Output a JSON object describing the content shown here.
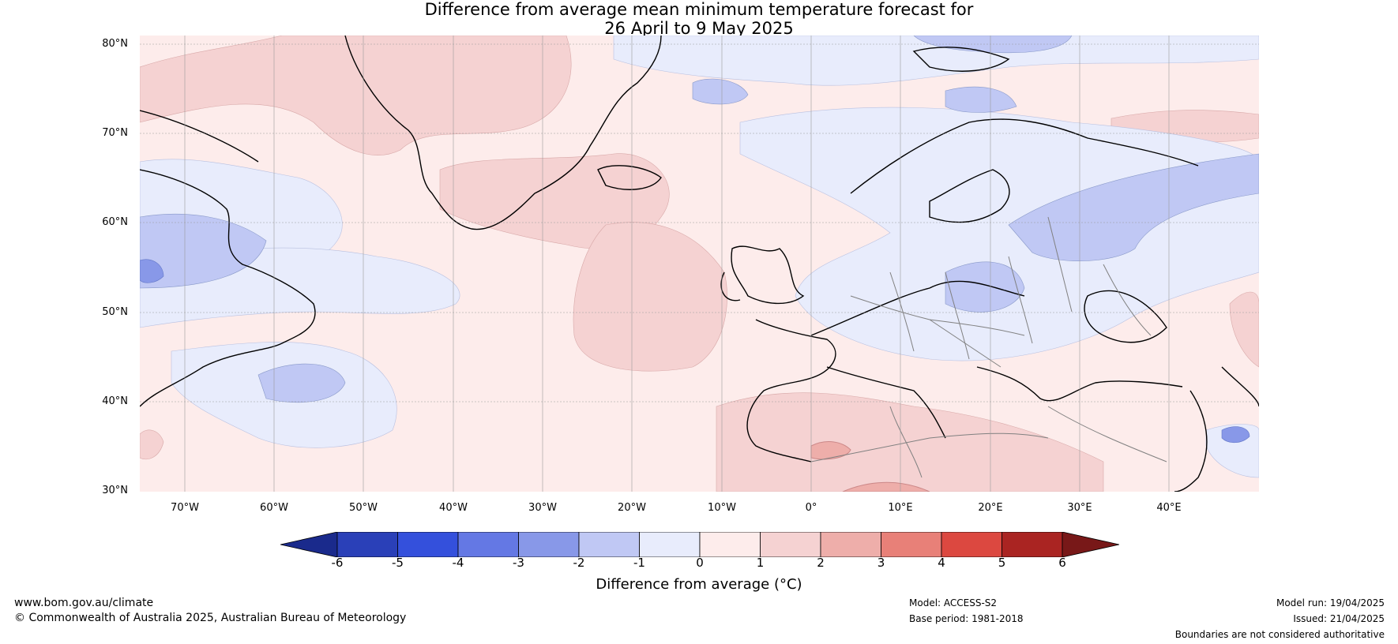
{
  "title": {
    "line1": "Difference from average mean minimum temperature forecast for",
    "line2": "26 April to 9 May 2025"
  },
  "map": {
    "lat_labels": [
      "80°N",
      "70°N",
      "60°N",
      "50°N",
      "40°N",
      "30°N"
    ],
    "lon_labels": [
      "70°W",
      "60°W",
      "50°W",
      "40°W",
      "30°W",
      "20°W",
      "10°W",
      "0°",
      "10°E",
      "20°E",
      "30°E",
      "40°E"
    ],
    "extent": {
      "lon": [
        -75,
        50
      ],
      "lat": [
        30,
        81
      ]
    }
  },
  "colorbar": {
    "label": "Difference from average (°C)",
    "ticks": [
      "-6",
      "-5",
      "-4",
      "-3",
      "-2",
      "-1",
      "0",
      "1",
      "2",
      "3",
      "4",
      "5",
      "6"
    ],
    "colors": [
      "#1a2a8c",
      "#2a40b8",
      "#3450dc",
      "#6478e4",
      "#8898e8",
      "#c0c8f4",
      "#e8ecfc",
      "#fdeceb",
      "#f5d2d2",
      "#eeaeaa",
      "#e88078",
      "#dc4840",
      "#aa2422",
      "#781818"
    ]
  },
  "footer": {
    "website": "www.bom.gov.au/climate",
    "copyright": "© Commonwealth of Australia 2025, Australian Bureau of Meteorology",
    "model": "Model: ACCESS-S2",
    "base_period": "Base period: 1981-2018",
    "model_run": "Model run: 19/04/2025",
    "issued": "Issued: 21/04/2025",
    "disclaimer": "Boundaries are not considered authoritative"
  }
}
